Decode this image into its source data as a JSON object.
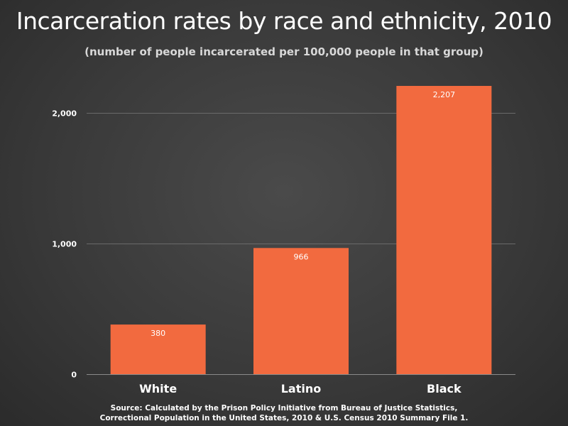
{
  "chart_data": {
    "type": "bar",
    "title": "Incarceration rates by race and ethnicity, 2010",
    "subtitle": "(number of people incarcerated per 100,000 people in that group)",
    "categories": [
      "White",
      "Latino",
      "Black"
    ],
    "values": [
      380,
      966,
      2207
    ],
    "value_labels": [
      "380",
      "966",
      "2,207"
    ],
    "xlabel": "",
    "ylabel": "",
    "ylim": [
      0,
      2400
    ],
    "y_ticks": [
      0,
      1000,
      2000
    ],
    "y_tick_labels": [
      "0",
      "1,000",
      "2,000"
    ],
    "grid": true,
    "legend": "none",
    "bar_color": "#f26a3f",
    "grid_color": "#6a6a6a"
  },
  "source": {
    "line1": "Source: Calculated by the Prison Policy Initiative from Bureau of Justice Statistics,",
    "line2": "Correctional Population in the United States, 2010 & U.S. Census 2010 Summary File 1."
  }
}
